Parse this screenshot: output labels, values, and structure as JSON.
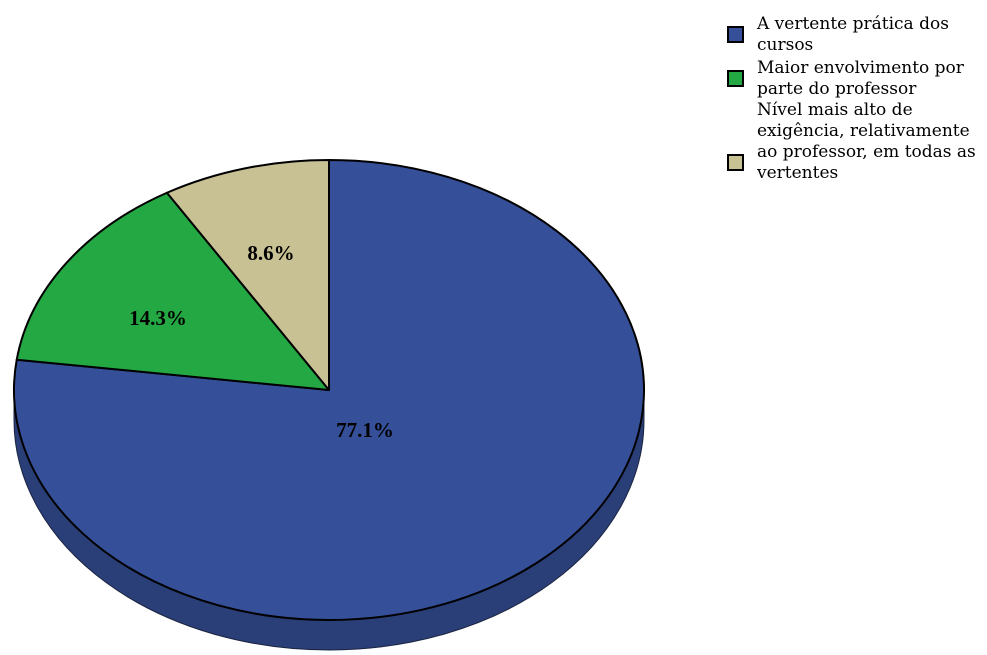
{
  "chart_data": {
    "type": "pie",
    "style": "3d",
    "start_angle_deg": 0,
    "direction": "clockwise",
    "slices": [
      {
        "label": "A vertente prática dos cursos",
        "value": 77.1,
        "display": "77.1%",
        "color": "#364f99"
      },
      {
        "label": "Maior envolvimento por parte do professor",
        "value": 14.3,
        "display": "14.3%",
        "color": "#24a843"
      },
      {
        "label": "Nível mais alto de exigência, relativamente ao professor, em todas as vertentes",
        "value": 8.6,
        "display": "8.6%",
        "color": "#c8c193"
      }
    ],
    "legend_position": "top-right"
  }
}
